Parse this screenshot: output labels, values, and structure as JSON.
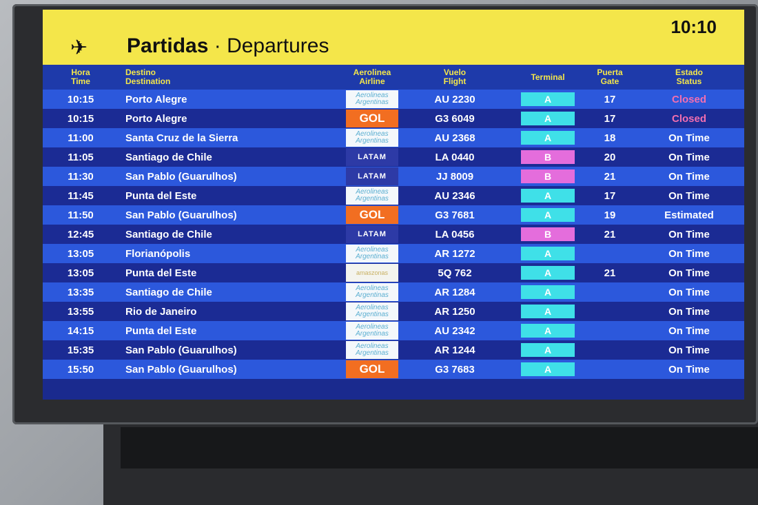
{
  "header": {
    "plane_icon": "departing-plane-icon",
    "title_es": "Partidas",
    "separator": "·",
    "title_en": "Departures",
    "clock": "10:10"
  },
  "columns": {
    "time_es": "Hora",
    "time_en": "Time",
    "dest_es": "Destino",
    "dest_en": "Destination",
    "airline_es": "Aerolinea",
    "airline_en": "Airline",
    "flight_es": "Vuelo",
    "flight_en": "Flight",
    "terminal": "Terminal",
    "gate_es": "Puerta",
    "gate_en": "Gate",
    "status_es": "Estado",
    "status_en": "Status"
  },
  "colors": {
    "header_yellow": "#f4e64a",
    "row_light": "#2c58dc",
    "row_dark": "#1b2b94",
    "terminal_a": "#3fe0e8",
    "terminal_b": "#e46ddc",
    "closed": "#f36fb0"
  },
  "airlines": {
    "ar": "Aerolineas Argentinas",
    "gol": "GOL",
    "latam": "LATAM",
    "amz": "amaszonas"
  },
  "flights": [
    {
      "time": "10:15",
      "dest": "Porto Alegre",
      "airline": "ar",
      "flight": "AU 2230",
      "terminal": "A",
      "gate": "17",
      "status": "Closed"
    },
    {
      "time": "10:15",
      "dest": "Porto Alegre",
      "airline": "gol",
      "flight": "G3 6049",
      "terminal": "A",
      "gate": "17",
      "status": "Closed"
    },
    {
      "time": "11:00",
      "dest": "Santa Cruz de la Sierra",
      "airline": "ar",
      "flight": "AU 2368",
      "terminal": "A",
      "gate": "18",
      "status": "On Time"
    },
    {
      "time": "11:05",
      "dest": "Santiago de Chile",
      "airline": "latam",
      "flight": "LA 0440",
      "terminal": "B",
      "gate": "20",
      "status": "On Time"
    },
    {
      "time": "11:30",
      "dest": "San Pablo (Guarulhos)",
      "airline": "latam",
      "flight": "JJ 8009",
      "terminal": "B",
      "gate": "21",
      "status": "On Time"
    },
    {
      "time": "11:45",
      "dest": "Punta del Este",
      "airline": "ar",
      "flight": "AU 2346",
      "terminal": "A",
      "gate": "17",
      "status": "On Time"
    },
    {
      "time": "11:50",
      "dest": "San Pablo (Guarulhos)",
      "airline": "gol",
      "flight": "G3 7681",
      "terminal": "A",
      "gate": "19",
      "status": "Estimated"
    },
    {
      "time": "12:45",
      "dest": "Santiago de Chile",
      "airline": "latam",
      "flight": "LA 0456",
      "terminal": "B",
      "gate": "21",
      "status": "On Time"
    },
    {
      "time": "13:05",
      "dest": "Florianópolis",
      "airline": "ar",
      "flight": "AR 1272",
      "terminal": "A",
      "gate": "",
      "status": "On Time"
    },
    {
      "time": "13:05",
      "dest": "Punta del Este",
      "airline": "amz",
      "flight": "5Q 762",
      "terminal": "A",
      "gate": "21",
      "status": "On Time"
    },
    {
      "time": "13:35",
      "dest": "Santiago de Chile",
      "airline": "ar",
      "flight": "AR 1284",
      "terminal": "A",
      "gate": "",
      "status": "On Time"
    },
    {
      "time": "13:55",
      "dest": "Rio de Janeiro",
      "airline": "ar",
      "flight": "AR 1250",
      "terminal": "A",
      "gate": "",
      "status": "On Time"
    },
    {
      "time": "14:15",
      "dest": "Punta del Este",
      "airline": "ar",
      "flight": "AU 2342",
      "terminal": "A",
      "gate": "",
      "status": "On Time"
    },
    {
      "time": "15:35",
      "dest": "San Pablo (Guarulhos)",
      "airline": "ar",
      "flight": "AR 1244",
      "terminal": "A",
      "gate": "",
      "status": "On Time"
    },
    {
      "time": "15:50",
      "dest": "San Pablo (Guarulhos)",
      "airline": "gol",
      "flight": "G3 7683",
      "terminal": "A",
      "gate": "",
      "status": "On Time"
    }
  ]
}
